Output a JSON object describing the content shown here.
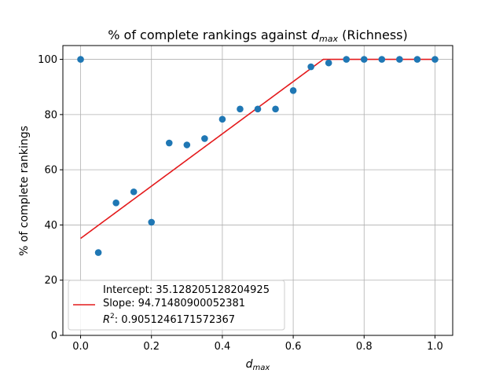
{
  "chart_data": {
    "type": "scatter",
    "title_main": "% of complete rankings against ",
    "title_var": "d",
    "title_sub": "max",
    "title_suffix": " (Richness)",
    "xlabel_var": "d",
    "xlabel_sub": "max",
    "ylabel": "% of complete rankings",
    "xlim": [
      -0.05,
      1.05
    ],
    "ylim": [
      0,
      105
    ],
    "xticks": [
      0.0,
      0.2,
      0.4,
      0.6,
      0.8,
      1.0
    ],
    "xtick_labels": [
      "0.0",
      "0.2",
      "0.4",
      "0.6",
      "0.8",
      "1.0"
    ],
    "yticks": [
      0,
      20,
      40,
      60,
      80,
      100
    ],
    "ytick_labels": [
      "0",
      "20",
      "40",
      "60",
      "80",
      "100"
    ],
    "grid": true,
    "legend_position": "bottom-left",
    "series": [
      {
        "kind": "points",
        "color": "#1f77b4",
        "x": [
          0.0,
          0.05,
          0.1,
          0.15,
          0.2,
          0.25,
          0.3,
          0.35,
          0.4,
          0.45,
          0.5,
          0.55,
          0.6,
          0.65,
          0.7,
          0.75,
          0.8,
          0.85,
          0.9,
          0.95,
          1.0
        ],
        "y": [
          100,
          30,
          48,
          52,
          41,
          69.7,
          69,
          71.3,
          78.3,
          82,
          82,
          82,
          88.7,
          97.3,
          98.7,
          100,
          100,
          100,
          100,
          100,
          100
        ]
      },
      {
        "kind": "fit-line",
        "color": "#e41a1c",
        "intercept": 35.128205128204925,
        "slope": 94.71480900052381,
        "cap": 100,
        "x_range": [
          0.0,
          1.0
        ]
      }
    ],
    "legend": {
      "line1": "Intercept: 35.128205128204925",
      "line2": "Slope: 94.71480900052381",
      "line3_prefix": "R",
      "line3_sup": "2",
      "line3_suffix": ": 0.9051246171572367",
      "line_color": "#e41a1c"
    }
  }
}
